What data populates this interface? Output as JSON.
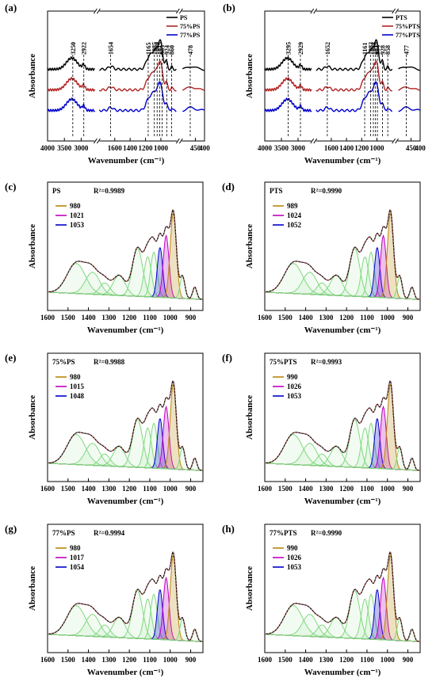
{
  "chart_data": [
    {
      "type": "line",
      "panel_label": "(a)",
      "xlabel": "Wavenumber (cm⁻¹)",
      "ylabel": "Absorbance",
      "xticks": [
        "4000",
        "3500",
        "3000",
        "1600",
        "1400",
        "1200",
        "1000",
        "450",
        "400"
      ],
      "series": [
        {
          "name": "PS",
          "color": "#000000"
        },
        {
          "name": "75%PS",
          "color": "#b22222"
        },
        {
          "name": "77%PS",
          "color": "#0000cc"
        }
      ],
      "annotations": [
        "3250",
        "2922",
        "1654",
        "1165",
        "1085",
        "1049",
        "1015",
        "985",
        "924",
        "860",
        "478"
      ]
    },
    {
      "type": "line",
      "panel_label": "(b)",
      "xlabel": "Wavenumber (cm⁻¹)",
      "ylabel": "Absorbance",
      "xticks": [
        "4000",
        "3500",
        "3000",
        "1600",
        "1400",
        "1200",
        "1000",
        "450",
        "400"
      ],
      "series": [
        {
          "name": "PTS",
          "color": "#000000"
        },
        {
          "name": "75%PTS",
          "color": "#b22222"
        },
        {
          "name": "77%PTS",
          "color": "#0000cc"
        }
      ],
      "annotations": [
        "3295",
        "2929",
        "1652",
        "1161",
        "1082",
        "1047",
        "1019",
        "928",
        "994",
        "858",
        "477"
      ]
    },
    {
      "type": "area",
      "panel_label": "(c)",
      "sample": "PS",
      "r2": "R²=0.9989",
      "xlabel": "Wavenumber (cm⁻¹)",
      "ylabel": "Absorbance",
      "xticks": [
        "1600",
        "1500",
        "1400",
        "1300",
        "1200",
        "1100",
        "1000",
        "900"
      ],
      "xlim": [
        1600,
        840
      ],
      "legend": [
        {
          "name": "980",
          "color": "#b8860b"
        },
        {
          "name": "1021",
          "color": "#c000c0"
        },
        {
          "name": "1053",
          "color": "#0000cc"
        }
      ]
    },
    {
      "type": "area",
      "panel_label": "(d)",
      "sample": "PTS",
      "r2": "R²=0.9990",
      "xlabel": "Wavenumber (cm⁻¹)",
      "ylabel": "Absorbance",
      "xticks": [
        "1600",
        "1500",
        "1400",
        "1300",
        "1200",
        "1100",
        "1000",
        "900"
      ],
      "xlim": [
        1600,
        840
      ],
      "legend": [
        {
          "name": "989",
          "color": "#b8860b"
        },
        {
          "name": "1024",
          "color": "#c000c0"
        },
        {
          "name": "1052",
          "color": "#0000cc"
        }
      ]
    },
    {
      "type": "area",
      "panel_label": "(e)",
      "sample": "75%PS",
      "r2": "R²=0.9988",
      "xlabel": "Wavenumber (cm⁻¹)",
      "ylabel": "Absorbance",
      "xticks": [
        "1600",
        "1500",
        "1400",
        "1300",
        "1200",
        "1100",
        "1000",
        "900"
      ],
      "xlim": [
        1600,
        840
      ],
      "legend": [
        {
          "name": "980",
          "color": "#b8860b"
        },
        {
          "name": "1015",
          "color": "#c000c0"
        },
        {
          "name": "1048",
          "color": "#0000cc"
        }
      ]
    },
    {
      "type": "area",
      "panel_label": "(f)",
      "sample": "75%PTS",
      "r2": "R²=0.9993",
      "xlabel": "Wavenumber (cm⁻¹)",
      "ylabel": "Absorbance",
      "xticks": [
        "1600",
        "1500",
        "1400",
        "1300",
        "1200",
        "1100",
        "1000",
        "900"
      ],
      "xlim": [
        1600,
        840
      ],
      "legend": [
        {
          "name": "990",
          "color": "#b8860b"
        },
        {
          "name": "1026",
          "color": "#c000c0"
        },
        {
          "name": "1053",
          "color": "#0000cc"
        }
      ]
    },
    {
      "type": "area",
      "panel_label": "(g)",
      "sample": "77%PS",
      "r2": "R²=0.9994",
      "xlabel": "Wavenumber (cm⁻¹)",
      "ylabel": "Absorbance",
      "xticks": [
        "1600",
        "1500",
        "1400",
        "1300",
        "1200",
        "1100",
        "1000",
        "900"
      ],
      "xlim": [
        1600,
        840
      ],
      "legend": [
        {
          "name": "980",
          "color": "#b8860b"
        },
        {
          "name": "1017",
          "color": "#c000c0"
        },
        {
          "name": "1054",
          "color": "#0000cc"
        }
      ]
    },
    {
      "type": "area",
      "panel_label": "(h)",
      "sample": "77%PTS",
      "r2": "R²=0.9990",
      "xlabel": "Wavenumber (cm⁻¹)",
      "ylabel": "Absorbance",
      "xticks": [
        "1600",
        "1500",
        "1400",
        "1300",
        "1200",
        "1100",
        "1000",
        "900"
      ],
      "xlim": [
        1600,
        840
      ],
      "legend": [
        {
          "name": "990",
          "color": "#b8860b"
        },
        {
          "name": "1026",
          "color": "#c000c0"
        },
        {
          "name": "1053",
          "color": "#0000cc"
        }
      ]
    }
  ]
}
